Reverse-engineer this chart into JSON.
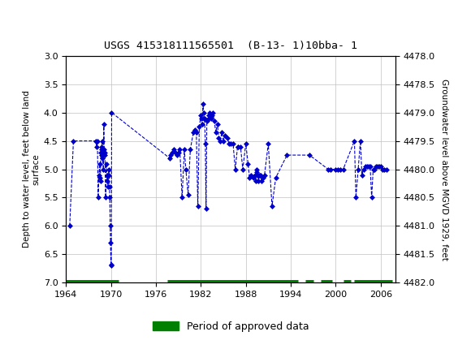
{
  "title": "USGS 415318111565501  (B-13- 1)10bba- 1",
  "ylabel_left": "Depth to water level, feet below land\nsurface",
  "ylabel_right": "Groundwater level above MGVD 1929, feet",
  "ylim_left": [
    3.0,
    7.0
  ],
  "ylim_right": [
    4482.0,
    4478.0
  ],
  "xlim": [
    1964,
    2008
  ],
  "xticks": [
    1964,
    1970,
    1976,
    1982,
    1988,
    1994,
    2000,
    2006
  ],
  "yticks_left": [
    3.0,
    3.5,
    4.0,
    4.5,
    5.0,
    5.5,
    6.0,
    6.5,
    7.0
  ],
  "yticks_right": [
    4482.0,
    4481.5,
    4481.0,
    4480.5,
    4480.0,
    4479.5,
    4479.0,
    4478.5,
    4478.0
  ],
  "header_color": "#006644",
  "line_color": "#0000CC",
  "approved_color": "#008000",
  "background_color": "#FFFFFF",
  "grid_color": "#C0C0C0",
  "data_x": [
    1964.5,
    1965.0,
    1968.0,
    1968.1,
    1968.2,
    1968.3,
    1968.4,
    1968.5,
    1968.55,
    1968.6,
    1968.65,
    1968.7,
    1968.75,
    1968.8,
    1968.85,
    1968.9,
    1969.0,
    1969.05,
    1969.1,
    1969.15,
    1969.2,
    1969.3,
    1969.4,
    1969.5,
    1969.55,
    1969.6,
    1969.65,
    1969.7,
    1969.75,
    1969.8,
    1969.85,
    1969.9,
    1969.95,
    1970.0,
    1970.05,
    1970.1,
    1977.8,
    1978.0,
    1978.2,
    1978.4,
    1978.6,
    1978.8,
    1979.0,
    1979.2,
    1979.5,
    1979.8,
    1980.0,
    1980.3,
    1980.6,
    1981.0,
    1981.2,
    1981.4,
    1981.6,
    1981.8,
    1982.0,
    1982.1,
    1982.2,
    1982.3,
    1982.35,
    1982.4,
    1982.5,
    1982.6,
    1982.7,
    1982.8,
    1983.0,
    1983.1,
    1983.2,
    1983.3,
    1983.4,
    1983.5,
    1983.6,
    1983.8,
    1984.0,
    1984.2,
    1984.4,
    1984.6,
    1984.8,
    1985.0,
    1985.2,
    1985.5,
    1985.8,
    1986.0,
    1986.3,
    1986.6,
    1986.9,
    1987.0,
    1987.3,
    1987.6,
    1988.0,
    1988.3,
    1988.5,
    1988.7,
    1989.0,
    1989.2,
    1989.3,
    1989.4,
    1989.5,
    1989.6,
    1989.7,
    1989.8,
    1989.9,
    1990.0,
    1990.1,
    1990.3,
    1990.5,
    1991.0,
    1991.5,
    1992.0,
    1993.5,
    1996.5,
    1999.0,
    1999.3,
    2000.0,
    2000.3,
    2000.6,
    2001.0,
    2002.5,
    2002.7,
    2003.0,
    2003.3,
    2003.5,
    2003.7,
    2004.0,
    2004.2,
    2004.4,
    2004.6,
    2004.8,
    2005.0,
    2005.2,
    2005.4,
    2005.6,
    2005.8,
    2006.0,
    2006.2,
    2006.5,
    2006.8
  ],
  "data_y": [
    6.0,
    4.5,
    4.5,
    4.6,
    4.5,
    5.5,
    5.1,
    4.9,
    5.15,
    5.2,
    4.7,
    4.75,
    4.65,
    4.6,
    4.5,
    4.8,
    5.0,
    4.2,
    4.65,
    4.7,
    4.75,
    5.5,
    4.9,
    5.2,
    5.1,
    5.3,
    5.1,
    5.0,
    5.1,
    5.3,
    5.5,
    6.0,
    6.3,
    6.68,
    6.7,
    4.0,
    4.8,
    4.75,
    4.7,
    4.65,
    4.7,
    4.75,
    4.7,
    4.65,
    5.5,
    4.65,
    5.0,
    5.45,
    4.65,
    4.35,
    4.3,
    4.35,
    5.65,
    4.25,
    4.05,
    4.1,
    4.2,
    3.85,
    4.0,
    4.1,
    4.1,
    4.55,
    5.7,
    4.15,
    4.1,
    4.05,
    4.0,
    4.05,
    4.1,
    4.05,
    4.0,
    4.15,
    4.35,
    4.2,
    4.45,
    4.5,
    4.35,
    4.5,
    4.4,
    4.45,
    4.55,
    4.55,
    4.55,
    5.0,
    4.6,
    4.6,
    4.6,
    5.0,
    4.55,
    4.9,
    5.15,
    5.1,
    5.15,
    5.1,
    5.2,
    5.0,
    5.05,
    5.1,
    5.2,
    5.1,
    5.1,
    5.1,
    5.2,
    5.15,
    5.1,
    4.55,
    5.65,
    5.15,
    4.75,
    4.75,
    5.0,
    5.0,
    5.0,
    5.0,
    5.0,
    5.0,
    4.5,
    5.5,
    5.0,
    4.5,
    5.1,
    5.0,
    4.95,
    4.95,
    4.95,
    4.95,
    5.5,
    5.0,
    5.0,
    4.95,
    4.95,
    4.95,
    4.95,
    5.0,
    5.0,
    5.0
  ],
  "approved_segments": [
    [
      1964.0,
      1971.0
    ],
    [
      1977.5,
      1995.0
    ],
    [
      1996.0,
      1997.0
    ],
    [
      1998.0,
      1999.5
    ],
    [
      2001.0,
      2002.0
    ],
    [
      2002.5,
      2007.5
    ]
  ]
}
